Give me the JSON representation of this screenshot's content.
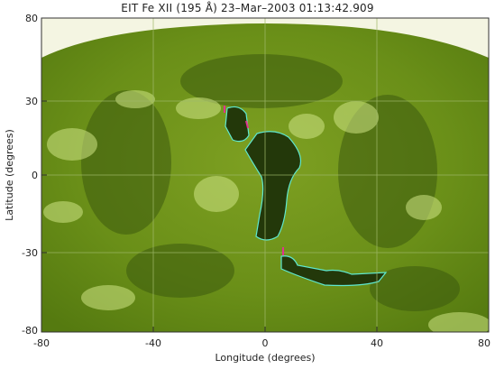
{
  "title": "EIT Fe XII (195 Å) 23–Mar–2003 01:13:42.909",
  "axes": {
    "x_label": "Longitude (degrees)",
    "y_label": "Latitude (degrees)",
    "x_ticks": [
      "-80",
      "-40",
      "0",
      "40",
      "80"
    ],
    "y_ticks": [
      "80",
      "30",
      "0",
      "-30",
      "-80"
    ]
  },
  "colors": {
    "disk_mid": "#6f9418",
    "disk_dark": "#33500c",
    "disk_bright": "#c9e07a",
    "background": "#f4f5e2",
    "hole_outline": "#5fe8d0",
    "marker": "#e0338f",
    "grid": "#9fb86a"
  },
  "markers": 3
}
